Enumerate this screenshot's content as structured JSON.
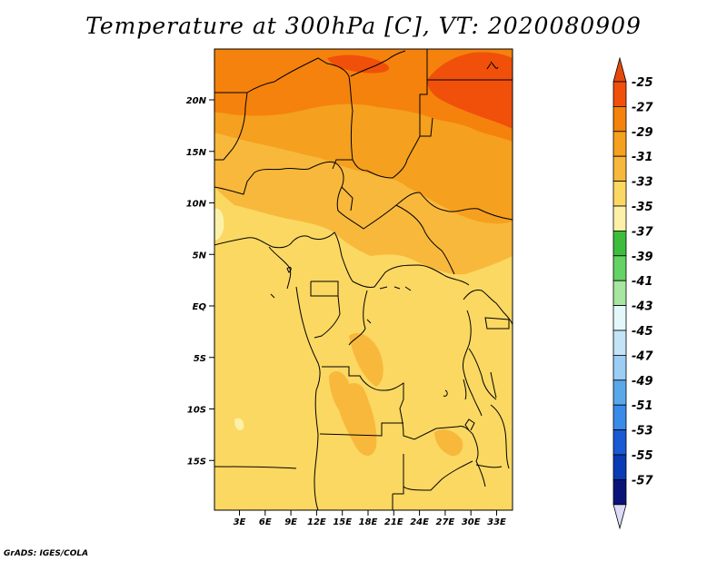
{
  "title": "Temperature at 300hPa [C], VT: 2020080909",
  "credit": "GrADS: IGES/COLA",
  "map": {
    "lat_labels": [
      "20N",
      "15N",
      "10N",
      "5N",
      "EQ",
      "5S",
      "10S",
      "15S"
    ],
    "lon_labels": [
      "3E",
      "6E",
      "9E",
      "12E",
      "15E",
      "18E",
      "21E",
      "24E",
      "27E",
      "30E",
      "33E"
    ],
    "field": "Temperature at 300hPa",
    "units": "C"
  },
  "colorbar": {
    "levels": [
      "-25",
      "-27",
      "-29",
      "-31",
      "-33",
      "-35",
      "-37",
      "-39",
      "-41",
      "-43",
      "-45",
      "-47",
      "-49",
      "-51",
      "-53",
      "-55",
      "-57"
    ],
    "colors": [
      "#f0500a",
      "#f5820c",
      "#f5a01e",
      "#f8b83c",
      "#fbd862",
      "#fdf0a8",
      "#3cbe3c",
      "#64d264",
      "#a6e6a0",
      "#e4f8fc",
      "#c2e4f6",
      "#9ccdf5",
      "#5aa8ea",
      "#3a8aea",
      "#1a5ad2",
      "#0a3ab4",
      "#0a1478"
    ],
    "top_triangle_color": "#e64a0a",
    "bottom_triangle_color": "#dcdcfa"
  }
}
